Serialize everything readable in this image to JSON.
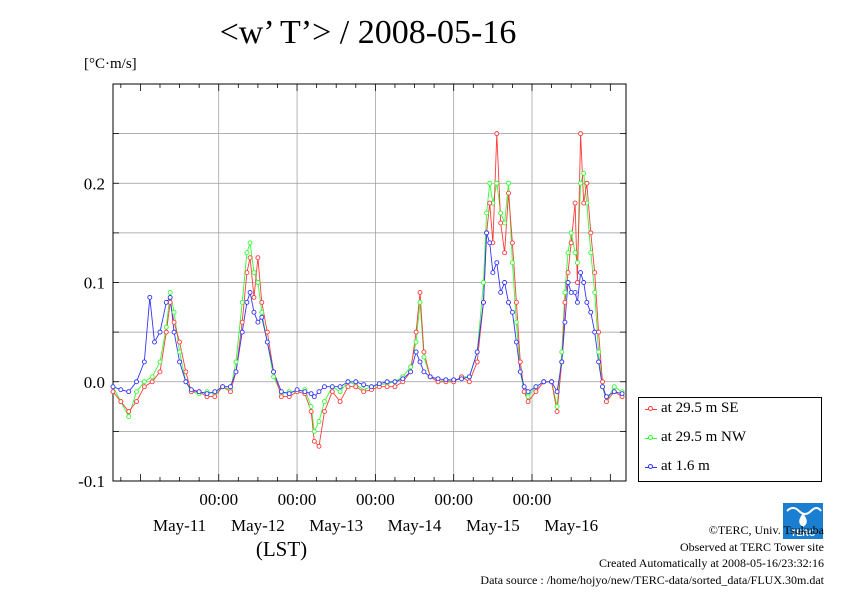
{
  "title": "<w’ T’> / 2008-05-16",
  "unit_label": "[°C·m/s]",
  "credits": {
    "copyright": "©TERC, Univ. Tsukuba",
    "observed": "Observed at TERC Tower site",
    "created": "Created Automatically at 2008-05-16/23:32:16",
    "source": "Data source : /home/hojyo/new/TERC-data/sorted_data/FLUX.30m.dat"
  },
  "logo_text": "TERC",
  "chart_data": {
    "type": "line",
    "title": "<w’ T’> / 2008-05-16",
    "xlabel": "(LST)",
    "ylabel": "[°C·m/s]",
    "ylim": [
      -0.1,
      0.3
    ],
    "xlim_days": [
      -0.35,
      6.2
    ],
    "y_ticks": [
      -0.1,
      0.0,
      0.1,
      0.2
    ],
    "y_tick_labels": [
      "-0.1",
      "0.0",
      "0.1",
      "0.2"
    ],
    "x_time_ticks": [
      "00:00",
      "00:00",
      "00:00",
      "00:00",
      "00:00"
    ],
    "x_date_labels": [
      "May-11",
      "May-12",
      "May-13",
      "May-14",
      "May-15",
      "May-16"
    ],
    "grid": true,
    "legend_position": "bottom-right outside",
    "series": [
      {
        "name": "at 29.5 m SE",
        "color": "#ff3b3b",
        "points": [
          [
            -0.35,
            -0.01
          ],
          [
            -0.25,
            -0.02
          ],
          [
            -0.15,
            -0.03
          ],
          [
            -0.05,
            -0.02
          ],
          [
            0.05,
            -0.005
          ],
          [
            0.15,
            0.0
          ],
          [
            0.25,
            0.01
          ],
          [
            0.33,
            0.05
          ],
          [
            0.38,
            0.08
          ],
          [
            0.43,
            0.06
          ],
          [
            0.5,
            0.04
          ],
          [
            0.58,
            0.01
          ],
          [
            0.65,
            -0.01
          ],
          [
            0.75,
            -0.01
          ],
          [
            0.85,
            -0.015
          ],
          [
            0.95,
            -0.015
          ],
          [
            1.05,
            -0.005
          ],
          [
            1.15,
            -0.01
          ],
          [
            1.22,
            0.01
          ],
          [
            1.3,
            0.06
          ],
          [
            1.36,
            0.11
          ],
          [
            1.4,
            0.125
          ],
          [
            1.45,
            0.085
          ],
          [
            1.5,
            0.125
          ],
          [
            1.55,
            0.08
          ],
          [
            1.62,
            0.05
          ],
          [
            1.7,
            0.01
          ],
          [
            1.8,
            -0.015
          ],
          [
            1.9,
            -0.015
          ],
          [
            2.0,
            -0.01
          ],
          [
            2.1,
            -0.012
          ],
          [
            2.18,
            -0.03
          ],
          [
            2.22,
            -0.06
          ],
          [
            2.28,
            -0.065
          ],
          [
            2.35,
            -0.03
          ],
          [
            2.45,
            -0.01
          ],
          [
            2.55,
            -0.02
          ],
          [
            2.65,
            -0.005
          ],
          [
            2.75,
            -0.005
          ],
          [
            2.85,
            -0.01
          ],
          [
            2.95,
            -0.008
          ],
          [
            3.05,
            -0.005
          ],
          [
            3.15,
            -0.005
          ],
          [
            3.25,
            -0.005
          ],
          [
            3.35,
            0.0
          ],
          [
            3.45,
            0.01
          ],
          [
            3.52,
            0.05
          ],
          [
            3.57,
            0.09
          ],
          [
            3.62,
            0.03
          ],
          [
            3.7,
            0.005
          ],
          [
            3.8,
            0.0
          ],
          [
            3.9,
            0.0
          ],
          [
            4.0,
            0.0
          ],
          [
            4.1,
            0.005
          ],
          [
            4.2,
            0.0
          ],
          [
            4.3,
            0.02
          ],
          [
            4.38,
            0.08
          ],
          [
            4.42,
            0.15
          ],
          [
            4.46,
            0.18
          ],
          [
            4.5,
            0.14
          ],
          [
            4.55,
            0.25
          ],
          [
            4.6,
            0.16
          ],
          [
            4.65,
            0.13
          ],
          [
            4.7,
            0.19
          ],
          [
            4.75,
            0.14
          ],
          [
            4.8,
            0.08
          ],
          [
            4.85,
            0.02
          ],
          [
            4.9,
            -0.01
          ],
          [
            4.95,
            -0.02
          ],
          [
            5.05,
            -0.01
          ],
          [
            5.15,
            0.0
          ],
          [
            5.25,
            0.0
          ],
          [
            5.32,
            -0.03
          ],
          [
            5.38,
            0.02
          ],
          [
            5.42,
            0.08
          ],
          [
            5.46,
            0.11
          ],
          [
            5.5,
            0.14
          ],
          [
            5.55,
            0.18
          ],
          [
            5.58,
            0.1
          ],
          [
            5.62,
            0.25
          ],
          [
            5.66,
            0.18
          ],
          [
            5.7,
            0.2
          ],
          [
            5.75,
            0.15
          ],
          [
            5.8,
            0.11
          ],
          [
            5.85,
            0.05
          ],
          [
            5.9,
            0.0
          ],
          [
            5.95,
            -0.02
          ],
          [
            6.05,
            -0.01
          ],
          [
            6.15,
            -0.015
          ]
        ]
      },
      {
        "name": "at 29.5 m NW",
        "color": "#33ff33",
        "points": [
          [
            -0.35,
            -0.005
          ],
          [
            -0.25,
            -0.02
          ],
          [
            -0.15,
            -0.035
          ],
          [
            -0.05,
            -0.01
          ],
          [
            0.05,
            0.0
          ],
          [
            0.15,
            0.005
          ],
          [
            0.25,
            0.02
          ],
          [
            0.33,
            0.055
          ],
          [
            0.38,
            0.09
          ],
          [
            0.43,
            0.07
          ],
          [
            0.5,
            0.03
          ],
          [
            0.58,
            0.0
          ],
          [
            0.65,
            -0.01
          ],
          [
            0.75,
            -0.012
          ],
          [
            0.85,
            -0.01
          ],
          [
            0.95,
            -0.012
          ],
          [
            1.05,
            -0.005
          ],
          [
            1.15,
            -0.008
          ],
          [
            1.22,
            0.02
          ],
          [
            1.3,
            0.08
          ],
          [
            1.36,
            0.13
          ],
          [
            1.4,
            0.14
          ],
          [
            1.45,
            0.11
          ],
          [
            1.5,
            0.1
          ],
          [
            1.55,
            0.07
          ],
          [
            1.62,
            0.04
          ],
          [
            1.7,
            0.005
          ],
          [
            1.8,
            -0.012
          ],
          [
            1.9,
            -0.01
          ],
          [
            2.0,
            -0.01
          ],
          [
            2.1,
            -0.008
          ],
          [
            2.18,
            -0.025
          ],
          [
            2.22,
            -0.05
          ],
          [
            2.28,
            -0.04
          ],
          [
            2.35,
            -0.02
          ],
          [
            2.45,
            -0.005
          ],
          [
            2.55,
            -0.01
          ],
          [
            2.65,
            0.0
          ],
          [
            2.75,
            -0.003
          ],
          [
            2.85,
            -0.008
          ],
          [
            2.95,
            -0.005
          ],
          [
            3.05,
            -0.003
          ],
          [
            3.15,
            -0.002
          ],
          [
            3.25,
            0.0
          ],
          [
            3.35,
            0.005
          ],
          [
            3.45,
            0.015
          ],
          [
            3.52,
            0.04
          ],
          [
            3.57,
            0.08
          ],
          [
            3.62,
            0.025
          ],
          [
            3.7,
            0.005
          ],
          [
            3.8,
            0.0
          ],
          [
            3.9,
            0.002
          ],
          [
            4.0,
            0.0
          ],
          [
            4.1,
            0.005
          ],
          [
            4.2,
            0.005
          ],
          [
            4.3,
            0.03
          ],
          [
            4.38,
            0.1
          ],
          [
            4.42,
            0.17
          ],
          [
            4.46,
            0.2
          ],
          [
            4.5,
            0.18
          ],
          [
            4.55,
            0.2
          ],
          [
            4.6,
            0.17
          ],
          [
            4.65,
            0.16
          ],
          [
            4.7,
            0.2
          ],
          [
            4.75,
            0.12
          ],
          [
            4.8,
            0.06
          ],
          [
            4.85,
            0.01
          ],
          [
            4.9,
            -0.01
          ],
          [
            4.95,
            -0.015
          ],
          [
            5.05,
            -0.005
          ],
          [
            5.15,
            0.0
          ],
          [
            5.25,
            0.0
          ],
          [
            5.32,
            -0.025
          ],
          [
            5.38,
            0.03
          ],
          [
            5.42,
            0.09
          ],
          [
            5.46,
            0.13
          ],
          [
            5.5,
            0.15
          ],
          [
            5.55,
            0.13
          ],
          [
            5.58,
            0.12
          ],
          [
            5.62,
            0.2
          ],
          [
            5.66,
            0.21
          ],
          [
            5.7,
            0.18
          ],
          [
            5.75,
            0.13
          ],
          [
            5.8,
            0.09
          ],
          [
            5.85,
            0.03
          ],
          [
            5.9,
            -0.005
          ],
          [
            5.95,
            -0.02
          ],
          [
            6.05,
            -0.005
          ],
          [
            6.15,
            -0.01
          ]
        ]
      },
      {
        "name": "at 1.6 m",
        "color": "#3333ff",
        "points": [
          [
            -0.35,
            -0.005
          ],
          [
            -0.25,
            -0.008
          ],
          [
            -0.15,
            -0.01
          ],
          [
            -0.05,
            0.0
          ],
          [
            0.05,
            0.02
          ],
          [
            0.12,
            0.085
          ],
          [
            0.18,
            0.04
          ],
          [
            0.25,
            0.05
          ],
          [
            0.33,
            0.08
          ],
          [
            0.38,
            0.085
          ],
          [
            0.43,
            0.05
          ],
          [
            0.5,
            0.02
          ],
          [
            0.58,
            0.0
          ],
          [
            0.65,
            -0.008
          ],
          [
            0.75,
            -0.01
          ],
          [
            0.85,
            -0.012
          ],
          [
            0.95,
            -0.01
          ],
          [
            1.05,
            -0.005
          ],
          [
            1.15,
            -0.005
          ],
          [
            1.22,
            0.01
          ],
          [
            1.3,
            0.05
          ],
          [
            1.36,
            0.08
          ],
          [
            1.4,
            0.09
          ],
          [
            1.45,
            0.07
          ],
          [
            1.5,
            0.06
          ],
          [
            1.55,
            0.065
          ],
          [
            1.62,
            0.04
          ],
          [
            1.7,
            0.01
          ],
          [
            1.8,
            -0.01
          ],
          [
            1.9,
            -0.012
          ],
          [
            2.0,
            -0.008
          ],
          [
            2.1,
            -0.01
          ],
          [
            2.18,
            -0.012
          ],
          [
            2.22,
            -0.015
          ],
          [
            2.28,
            -0.01
          ],
          [
            2.35,
            -0.005
          ],
          [
            2.45,
            -0.005
          ],
          [
            2.55,
            -0.005
          ],
          [
            2.65,
            0.0
          ],
          [
            2.75,
            0.0
          ],
          [
            2.85,
            -0.003
          ],
          [
            2.95,
            -0.005
          ],
          [
            3.05,
            -0.002
          ],
          [
            3.15,
            0.0
          ],
          [
            3.25,
            0.0
          ],
          [
            3.35,
            0.003
          ],
          [
            3.45,
            0.01
          ],
          [
            3.52,
            0.03
          ],
          [
            3.57,
            0.02
          ],
          [
            3.62,
            0.01
          ],
          [
            3.7,
            0.005
          ],
          [
            3.8,
            0.003
          ],
          [
            3.9,
            0.002
          ],
          [
            4.0,
            0.002
          ],
          [
            4.1,
            0.003
          ],
          [
            4.2,
            0.005
          ],
          [
            4.3,
            0.03
          ],
          [
            4.38,
            0.08
          ],
          [
            4.42,
            0.15
          ],
          [
            4.46,
            0.14
          ],
          [
            4.5,
            0.11
          ],
          [
            4.55,
            0.12
          ],
          [
            4.6,
            0.09
          ],
          [
            4.65,
            0.1
          ],
          [
            4.7,
            0.08
          ],
          [
            4.75,
            0.07
          ],
          [
            4.8,
            0.04
          ],
          [
            4.85,
            0.01
          ],
          [
            4.9,
            -0.005
          ],
          [
            4.95,
            -0.01
          ],
          [
            5.05,
            -0.005
          ],
          [
            5.15,
            0.0
          ],
          [
            5.25,
            0.0
          ],
          [
            5.32,
            -0.01
          ],
          [
            5.38,
            0.02
          ],
          [
            5.42,
            0.06
          ],
          [
            5.46,
            0.1
          ],
          [
            5.5,
            0.09
          ],
          [
            5.55,
            0.09
          ],
          [
            5.58,
            0.08
          ],
          [
            5.62,
            0.11
          ],
          [
            5.66,
            0.1
          ],
          [
            5.7,
            0.08
          ],
          [
            5.75,
            0.07
          ],
          [
            5.8,
            0.05
          ],
          [
            5.85,
            0.02
          ],
          [
            5.9,
            -0.005
          ],
          [
            5.95,
            -0.015
          ],
          [
            6.05,
            -0.01
          ],
          [
            6.15,
            -0.012
          ]
        ]
      }
    ]
  }
}
